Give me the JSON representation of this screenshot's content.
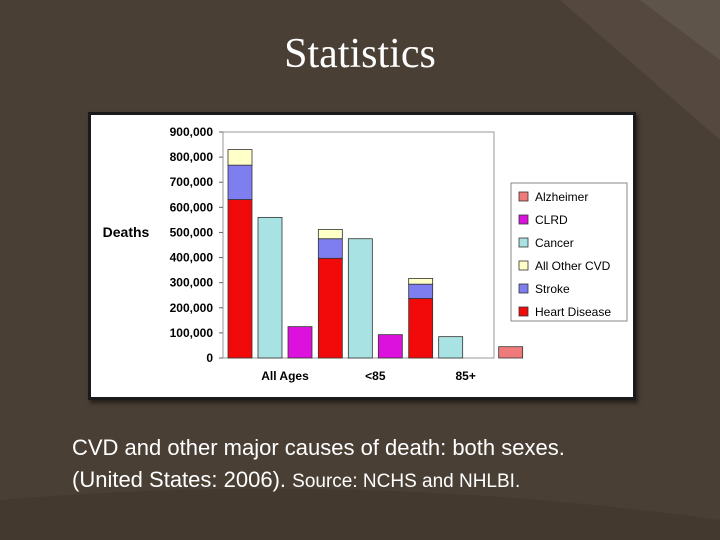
{
  "slide": {
    "title": "Statistics",
    "caption_line1": "CVD and other major causes of death: both sexes.",
    "caption_line2": "(United States: 2006).",
    "caption_source": "Source: NCHS and NHLBI."
  },
  "colors": {
    "background": "#4a3f35",
    "Alzheimer": "#f07a7a",
    "CLRD": "#dd11dd",
    "Cancer": "#a8e2e2",
    "All Other CVD": "#ffffc8",
    "Stroke": "#7e7ef0",
    "Heart Disease": "#f20a0a"
  },
  "chart_data": {
    "type": "bar",
    "stacked_groups": true,
    "title": "",
    "xlabel": "",
    "ylabel": "Deaths",
    "ylim": [
      0,
      900000
    ],
    "yticks": [
      0,
      100000,
      200000,
      300000,
      400000,
      500000,
      600000,
      700000,
      800000,
      900000
    ],
    "ytick_labels": [
      "0",
      "100,000",
      "200,000",
      "300,000",
      "400,000",
      "500,000",
      "600,000",
      "700,000",
      "800,000",
      "900,000"
    ],
    "categories": [
      "All Ages",
      "<85",
      "85+"
    ],
    "legend_position": "right",
    "legend": [
      "Alzheimer",
      "CLRD",
      "Cancer",
      "All Other CVD",
      "Stroke",
      "Heart Disease"
    ],
    "groups": [
      {
        "category": "All Ages",
        "bars": [
          {
            "stack": [
              {
                "series": "Heart Disease",
                "value": 631000
              },
              {
                "series": "Stroke",
                "value": 137000
              },
              {
                "series": "All Other CVD",
                "value": 62000
              }
            ]
          },
          {
            "stack": [
              {
                "series": "Cancer",
                "value": 560000
              }
            ]
          },
          {
            "stack": [
              {
                "series": "CLRD",
                "value": 125000
              }
            ]
          },
          {
            "stack": []
          }
        ]
      },
      {
        "category": "<85",
        "bars": [
          {
            "stack": [
              {
                "series": "Heart Disease",
                "value": 397000
              },
              {
                "series": "Stroke",
                "value": 78000
              },
              {
                "series": "All Other CVD",
                "value": 37000
              }
            ]
          },
          {
            "stack": [
              {
                "series": "Cancer",
                "value": 475000
              }
            ]
          },
          {
            "stack": [
              {
                "series": "CLRD",
                "value": 93000
              }
            ]
          },
          {
            "stack": []
          }
        ]
      },
      {
        "category": "85+",
        "bars": [
          {
            "stack": [
              {
                "series": "Heart Disease",
                "value": 237000
              },
              {
                "series": "Stroke",
                "value": 57000
              },
              {
                "series": "All Other CVD",
                "value": 23000
              }
            ]
          },
          {
            "stack": [
              {
                "series": "Cancer",
                "value": 85000
              }
            ]
          },
          {
            "stack": []
          },
          {
            "stack": [
              {
                "series": "Alzheimer",
                "value": 45000
              }
            ]
          }
        ]
      }
    ]
  }
}
